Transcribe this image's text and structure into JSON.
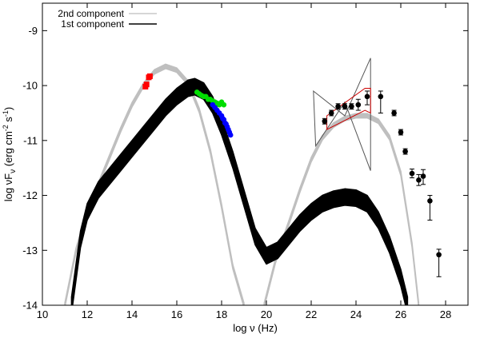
{
  "chart_data": {
    "type": "line",
    "xlabel": "log ν (Hz)",
    "ylabel": {
      "main": "log νF",
      "sub": "ν",
      "unit_pre": " (erg cm",
      "exp1": "-2",
      "unit_mid": " s",
      "exp2": "-1",
      "unit_post": ")"
    },
    "xlim": [
      10,
      29
    ],
    "ylim": [
      -14,
      -8.5
    ],
    "xticks": [
      10,
      12,
      14,
      16,
      18,
      20,
      22,
      24,
      26,
      28
    ],
    "yticks": [
      -14,
      -13,
      -12,
      -11,
      -10,
      -9
    ],
    "grid": false,
    "legend_position": "top-left",
    "legend": [
      {
        "name": "2nd component",
        "color": "#c8c8c8"
      },
      {
        "name": "1st component",
        "color": "#000000"
      }
    ],
    "series": [
      {
        "name": "2nd component",
        "color": "#bfbfbf",
        "band_width": 0.08,
        "x": [
          11.0,
          11.5,
          12.0,
          12.5,
          13.0,
          13.5,
          14.0,
          14.5,
          15.0,
          15.5,
          16.0,
          16.5,
          17.0,
          17.5,
          18.0,
          18.5,
          19.0,
          19.5,
          19.9,
          20.4,
          21.0,
          21.5,
          22.0,
          22.5,
          23.0,
          23.5,
          24.0,
          24.5,
          25.0,
          25.5,
          26.0,
          26.5,
          26.8
        ],
        "y": [
          -14.0,
          -13.0,
          -12.3,
          -11.8,
          -11.3,
          -10.8,
          -10.35,
          -10.0,
          -9.75,
          -9.65,
          -9.72,
          -9.95,
          -10.45,
          -11.2,
          -12.2,
          -13.3,
          -14.0,
          null,
          -14.0,
          -13.2,
          -12.5,
          -11.9,
          -11.35,
          -10.95,
          -10.72,
          -10.6,
          -10.55,
          -10.55,
          -10.65,
          -10.95,
          -11.6,
          -12.9,
          -14.0
        ]
      },
      {
        "name": "1st component",
        "color": "#000000",
        "band_width": 0.3,
        "x": [
          11.3,
          11.7,
          12.0,
          12.5,
          13.0,
          13.5,
          14.0,
          14.5,
          15.0,
          15.5,
          16.0,
          16.5,
          16.8,
          17.2,
          17.6,
          18.0,
          18.5,
          19.0,
          19.5,
          20.0,
          20.5,
          21.0,
          21.5,
          22.0,
          22.5,
          23.0,
          23.5,
          24.0,
          24.5,
          25.0,
          25.5,
          26.0,
          26.3
        ],
        "y": [
          -14.0,
          -12.8,
          -12.3,
          -11.9,
          -11.65,
          -11.4,
          -11.15,
          -10.9,
          -10.65,
          -10.4,
          -10.2,
          -10.05,
          -10.02,
          -10.1,
          -10.35,
          -10.75,
          -11.35,
          -12.05,
          -12.75,
          -13.1,
          -13.0,
          -12.75,
          -12.5,
          -12.3,
          -12.15,
          -12.07,
          -12.03,
          -12.05,
          -12.15,
          -12.45,
          -12.9,
          -13.5,
          -14.0
        ]
      }
    ],
    "points": [
      {
        "name": "optical",
        "color": "#ff0000",
        "shape": "square",
        "x": [
          14.6,
          14.65,
          14.75,
          14.8
        ],
        "y": [
          -10.02,
          -9.98,
          -9.85,
          -9.83
        ]
      },
      {
        "name": "x-ray-soft",
        "color": "#00dd00",
        "shape": "circle",
        "x": [
          16.9,
          17.0,
          17.1,
          17.2,
          17.3,
          17.4,
          17.5,
          17.6,
          17.7,
          17.8,
          17.9,
          18.0,
          18.1
        ],
        "y": [
          -10.12,
          -10.15,
          -10.18,
          -10.2,
          -10.2,
          -10.25,
          -10.25,
          -10.28,
          -10.3,
          -10.32,
          -10.35,
          -10.3,
          -10.35
        ]
      },
      {
        "name": "x-ray-hard",
        "color": "#0000ff",
        "shape": "circle",
        "x": [
          17.6,
          17.7,
          17.8,
          17.9,
          18.0,
          18.05,
          18.1,
          18.15,
          18.2,
          18.25,
          18.3,
          18.35,
          18.4
        ],
        "y": [
          -10.35,
          -10.4,
          -10.45,
          -10.5,
          -10.55,
          -10.6,
          -10.62,
          -10.68,
          -10.7,
          -10.75,
          -10.8,
          -10.85,
          -10.9
        ]
      },
      {
        "name": "gamma",
        "color": "#000000",
        "shape": "circle",
        "x": [
          22.6,
          22.9,
          23.2,
          23.5,
          23.8,
          24.1,
          24.5,
          25.1,
          25.7,
          26.0,
          26.2,
          26.5,
          26.8,
          27.0,
          27.3,
          27.7
        ],
        "y": [
          -10.65,
          -10.5,
          -10.38,
          -10.38,
          -10.38,
          -10.35,
          -10.2,
          -10.2,
          -10.5,
          -10.85,
          -11.2,
          -11.6,
          -11.72,
          -11.65,
          -12.1,
          -13.08
        ],
        "err_lo": [
          0.05,
          0.05,
          0.05,
          0.05,
          0.05,
          0.1,
          0.15,
          0.3,
          0.05,
          0.05,
          0.05,
          0.08,
          0.1,
          0.15,
          0.35,
          0.4
        ],
        "err_hi": [
          0.05,
          0.05,
          0.05,
          0.05,
          0.05,
          0.1,
          0.1,
          0.1,
          0.05,
          0.05,
          0.05,
          0.08,
          0.1,
          0.12,
          0.1,
          0.1
        ]
      }
    ],
    "bowties": [
      {
        "name": "gray-bowtie",
        "color": "#555555",
        "polygon": [
          [
            22.1,
            -10.1
          ],
          [
            23.5,
            -10.55
          ],
          [
            24.65,
            -9.5
          ],
          [
            24.65,
            -11.55
          ],
          [
            23.5,
            -10.3
          ],
          [
            22.2,
            -11.1
          ]
        ]
      },
      {
        "name": "red-bowtie",
        "color": "#cc0000",
        "polygon": [
          [
            22.7,
            -10.55
          ],
          [
            24.4,
            -10.05
          ],
          [
            24.65,
            -10.05
          ],
          [
            24.65,
            -10.5
          ],
          [
            24.4,
            -10.45
          ],
          [
            22.7,
            -10.8
          ]
        ]
      }
    ]
  }
}
